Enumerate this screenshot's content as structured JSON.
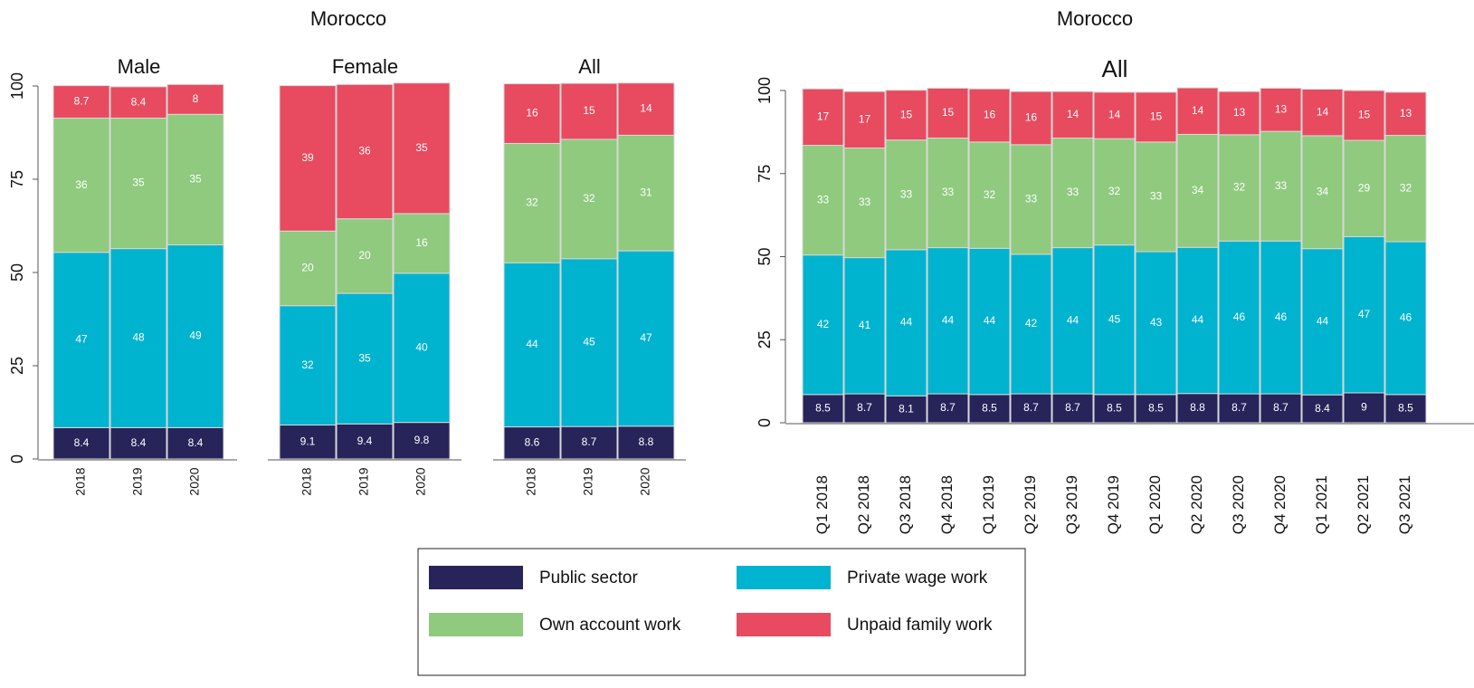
{
  "chart_data": [
    {
      "type": "stacked_bar",
      "supertitle": "Morocco",
      "title": "Male",
      "categories": [
        "2018",
        "2019",
        "2020"
      ],
      "ylim": [
        0,
        100
      ],
      "yticks": [
        0,
        25,
        50,
        75,
        100
      ],
      "series": [
        {
          "name": "Public sector",
          "color": "#27245a",
          "values": [
            8.4,
            8.4,
            8.4
          ]
        },
        {
          "name": "Private wage work",
          "color": "#00b3cf",
          "values": [
            47,
            48,
            49
          ]
        },
        {
          "name": "Own account work",
          "color": "#8fca7e",
          "values": [
            36,
            35,
            35
          ]
        },
        {
          "name": "Unpaid family work",
          "color": "#e84a5f",
          "values": [
            8.7,
            8.4,
            8
          ]
        }
      ]
    },
    {
      "type": "stacked_bar",
      "title": "Female",
      "categories": [
        "2018",
        "2019",
        "2020"
      ],
      "ylim": [
        0,
        100
      ],
      "series": [
        {
          "name": "Public sector",
          "color": "#27245a",
          "values": [
            9.1,
            9.4,
            9.8
          ]
        },
        {
          "name": "Private wage work",
          "color": "#00b3cf",
          "values": [
            32,
            35,
            40
          ]
        },
        {
          "name": "Own account work",
          "color": "#8fca7e",
          "values": [
            20,
            20,
            16
          ]
        },
        {
          "name": "Unpaid family work",
          "color": "#e84a5f",
          "values": [
            39,
            36,
            35
          ]
        }
      ]
    },
    {
      "type": "stacked_bar",
      "title": "All",
      "categories": [
        "2018",
        "2019",
        "2020"
      ],
      "ylim": [
        0,
        100
      ],
      "series": [
        {
          "name": "Public sector",
          "color": "#27245a",
          "values": [
            8.6,
            8.7,
            8.8
          ]
        },
        {
          "name": "Private wage work",
          "color": "#00b3cf",
          "values": [
            44,
            45,
            47
          ]
        },
        {
          "name": "Own account work",
          "color": "#8fca7e",
          "values": [
            32,
            32,
            31
          ]
        },
        {
          "name": "Unpaid family work",
          "color": "#e84a5f",
          "values": [
            16,
            15,
            14
          ]
        }
      ]
    },
    {
      "type": "stacked_bar",
      "supertitle": "Morocco",
      "title": "All",
      "categories": [
        "Q1 2018",
        "Q2 2018",
        "Q3 2018",
        "Q4 2018",
        "Q1 2019",
        "Q2 2019",
        "Q3 2019",
        "Q4 2019",
        "Q1 2020",
        "Q2 2020",
        "Q3 2020",
        "Q4 2020",
        "Q1 2021",
        "Q2 2021",
        "Q3 2021"
      ],
      "ylim": [
        0,
        100
      ],
      "yticks": [
        0,
        25,
        50,
        75,
        100
      ],
      "series": [
        {
          "name": "Public sector",
          "color": "#27245a",
          "values": [
            8.5,
            8.7,
            8.1,
            8.7,
            8.5,
            8.7,
            8.7,
            8.5,
            8.5,
            8.8,
            8.7,
            8.7,
            8.4,
            9,
            8.5
          ]
        },
        {
          "name": "Private wage work",
          "color": "#00b3cf",
          "values": [
            42,
            41,
            44,
            44,
            44,
            42,
            44,
            45,
            43,
            44,
            46,
            46,
            44,
            47,
            46
          ]
        },
        {
          "name": "Own account work",
          "color": "#8fca7e",
          "values": [
            33,
            33,
            33,
            33,
            32,
            33,
            33,
            32,
            33,
            34,
            32,
            33,
            34,
            29,
            32
          ]
        },
        {
          "name": "Unpaid family work",
          "color": "#e84a5f",
          "values": [
            17,
            17,
            15,
            15,
            16,
            16,
            14,
            14,
            15,
            14,
            13,
            13,
            14,
            15,
            13
          ]
        }
      ]
    }
  ]
}
